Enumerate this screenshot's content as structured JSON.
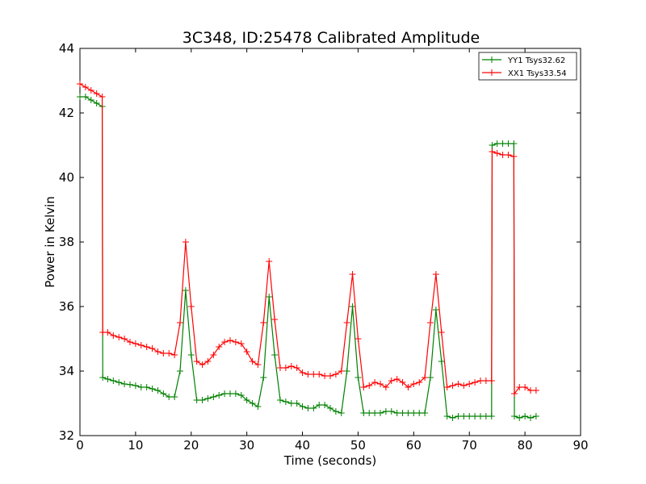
{
  "chart_data": {
    "type": "line",
    "title": "3C348, ID:25478 Calibrated Amplitude",
    "xlabel": "Time (seconds)",
    "ylabel": "Power in Kelvin",
    "xlim": [
      0,
      90
    ],
    "ylim": [
      32,
      44
    ],
    "xticks": [
      "0",
      "10",
      "20",
      "30",
      "40",
      "50",
      "60",
      "70",
      "80",
      "90"
    ],
    "yticks": [
      "32",
      "34",
      "36",
      "38",
      "40",
      "42",
      "44"
    ],
    "grid": false,
    "legend_position": "top-right",
    "marker": "+",
    "series": [
      {
        "name": "YY1 Tsys32.62",
        "color": "#008000",
        "points": [
          [
            0,
            42.5
          ],
          [
            1,
            42.5
          ],
          [
            2,
            42.4
          ],
          [
            3,
            42.3
          ],
          [
            4,
            42.2
          ],
          [
            4.1,
            33.8
          ],
          [
            5,
            33.75
          ],
          [
            6,
            33.7
          ],
          [
            7,
            33.65
          ],
          [
            8,
            33.6
          ],
          [
            9,
            33.58
          ],
          [
            10,
            33.55
          ],
          [
            11,
            33.5
          ],
          [
            12,
            33.5
          ],
          [
            13,
            33.45
          ],
          [
            14,
            33.4
          ],
          [
            15,
            33.3
          ],
          [
            16,
            33.2
          ],
          [
            17,
            33.2
          ],
          [
            18,
            34.0
          ],
          [
            19,
            36.5
          ],
          [
            20,
            34.5
          ],
          [
            21,
            33.1
          ],
          [
            22,
            33.1
          ],
          [
            23,
            33.15
          ],
          [
            24,
            33.2
          ],
          [
            25,
            33.25
          ],
          [
            26,
            33.3
          ],
          [
            27,
            33.3
          ],
          [
            28,
            33.3
          ],
          [
            29,
            33.25
          ],
          [
            30,
            33.1
          ],
          [
            31,
            33.0
          ],
          [
            32,
            32.9
          ],
          [
            33,
            33.8
          ],
          [
            34,
            36.3
          ],
          [
            35,
            34.5
          ],
          [
            36,
            33.1
          ],
          [
            37,
            33.05
          ],
          [
            38,
            33.0
          ],
          [
            39,
            33.0
          ],
          [
            40,
            32.9
          ],
          [
            41,
            32.85
          ],
          [
            42,
            32.85
          ],
          [
            43,
            32.95
          ],
          [
            44,
            32.95
          ],
          [
            45,
            32.85
          ],
          [
            46,
            32.75
          ],
          [
            47,
            32.7
          ],
          [
            48,
            34.0
          ],
          [
            49,
            36.0
          ],
          [
            50,
            33.8
          ],
          [
            51,
            32.7
          ],
          [
            52,
            32.7
          ],
          [
            53,
            32.7
          ],
          [
            54,
            32.7
          ],
          [
            55,
            32.75
          ],
          [
            56,
            32.75
          ],
          [
            57,
            32.7
          ],
          [
            58,
            32.7
          ],
          [
            59,
            32.7
          ],
          [
            60,
            32.7
          ],
          [
            61,
            32.7
          ],
          [
            62,
            32.7
          ],
          [
            63,
            33.8
          ],
          [
            64,
            35.9
          ],
          [
            65,
            34.3
          ],
          [
            66,
            32.6
          ],
          [
            67,
            32.55
          ],
          [
            68,
            32.6
          ],
          [
            69,
            32.6
          ],
          [
            70,
            32.6
          ],
          [
            71,
            32.6
          ],
          [
            72,
            32.6
          ],
          [
            73,
            32.6
          ],
          [
            74,
            32.6
          ],
          [
            74.1,
            41.0
          ],
          [
            75,
            41.05
          ],
          [
            76,
            41.05
          ],
          [
            77,
            41.05
          ],
          [
            78,
            41.05
          ],
          [
            78.1,
            32.6
          ],
          [
            79,
            32.55
          ],
          [
            80,
            32.6
          ],
          [
            81,
            32.55
          ],
          [
            82,
            32.6
          ]
        ]
      },
      {
        "name": "XX1 Tsys33.54",
        "color": "#ff0000",
        "points": [
          [
            0,
            42.9
          ],
          [
            1,
            42.8
          ],
          [
            2,
            42.7
          ],
          [
            3,
            42.6
          ],
          [
            4,
            42.5
          ],
          [
            4.1,
            35.2
          ],
          [
            5,
            35.2
          ],
          [
            6,
            35.1
          ],
          [
            7,
            35.05
          ],
          [
            8,
            35.0
          ],
          [
            9,
            34.9
          ],
          [
            10,
            34.85
          ],
          [
            11,
            34.8
          ],
          [
            12,
            34.75
          ],
          [
            13,
            34.7
          ],
          [
            14,
            34.6
          ],
          [
            15,
            34.55
          ],
          [
            16,
            34.55
          ],
          [
            17,
            34.5
          ],
          [
            18,
            35.5
          ],
          [
            19,
            38.0
          ],
          [
            20,
            36.0
          ],
          [
            21,
            34.3
          ],
          [
            22,
            34.2
          ],
          [
            23,
            34.3
          ],
          [
            24,
            34.5
          ],
          [
            25,
            34.75
          ],
          [
            26,
            34.9
          ],
          [
            27,
            34.95
          ],
          [
            28,
            34.9
          ],
          [
            29,
            34.85
          ],
          [
            30,
            34.6
          ],
          [
            31,
            34.3
          ],
          [
            32,
            34.2
          ],
          [
            33,
            35.5
          ],
          [
            34,
            37.4
          ],
          [
            35,
            35.6
          ],
          [
            36,
            34.1
          ],
          [
            37,
            34.1
          ],
          [
            38,
            34.15
          ],
          [
            39,
            34.1
          ],
          [
            40,
            33.95
          ],
          [
            41,
            33.9
          ],
          [
            42,
            33.9
          ],
          [
            43,
            33.9
          ],
          [
            44,
            33.85
          ],
          [
            45,
            33.85
          ],
          [
            46,
            33.9
          ],
          [
            47,
            34.0
          ],
          [
            48,
            35.5
          ],
          [
            49,
            37.0
          ],
          [
            50,
            35.0
          ],
          [
            51,
            33.5
          ],
          [
            52,
            33.55
          ],
          [
            53,
            33.65
          ],
          [
            54,
            33.6
          ],
          [
            55,
            33.5
          ],
          [
            56,
            33.7
          ],
          [
            57,
            33.75
          ],
          [
            58,
            33.65
          ],
          [
            59,
            33.5
          ],
          [
            60,
            33.6
          ],
          [
            61,
            33.65
          ],
          [
            62,
            33.8
          ],
          [
            63,
            35.5
          ],
          [
            64,
            37.0
          ],
          [
            65,
            35.2
          ],
          [
            66,
            33.5
          ],
          [
            67,
            33.55
          ],
          [
            68,
            33.6
          ],
          [
            69,
            33.55
          ],
          [
            70,
            33.6
          ],
          [
            71,
            33.65
          ],
          [
            72,
            33.7
          ],
          [
            73,
            33.7
          ],
          [
            74,
            33.7
          ],
          [
            74.1,
            40.8
          ],
          [
            75,
            40.75
          ],
          [
            76,
            40.7
          ],
          [
            77,
            40.7
          ],
          [
            78,
            40.65
          ],
          [
            78.1,
            33.3
          ],
          [
            79,
            33.5
          ],
          [
            80,
            33.5
          ],
          [
            81,
            33.4
          ],
          [
            82,
            33.4
          ]
        ]
      }
    ]
  }
}
